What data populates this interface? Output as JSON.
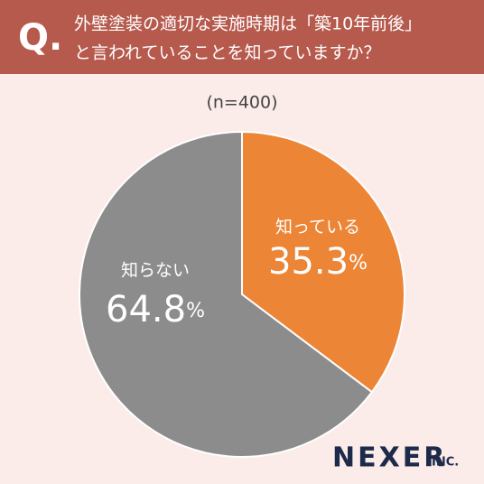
{
  "chart_data": {
    "type": "pie",
    "question_mark": "Q.",
    "title_lines": [
      "外壁塗装の適切な実施時期は「築10年前後」",
      "と言われていることを知っていますか？"
    ],
    "subtitle": "(n=400)",
    "categories": [
      "知っている",
      "知らない"
    ],
    "values": [
      35.3,
      64.8
    ],
    "value_labels": [
      "35.3%",
      "64.8%"
    ],
    "colors": [
      "#ec8536",
      "#8c8c8c"
    ],
    "brand": "NEXER",
    "brand_suffix": "INC."
  }
}
